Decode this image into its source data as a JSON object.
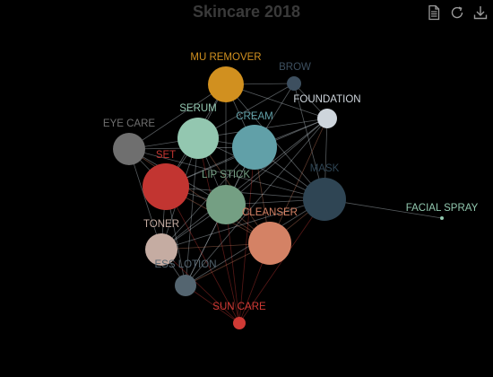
{
  "title": "Skincare 2018",
  "toolbar": {
    "icons": [
      "document-icon",
      "refresh-icon",
      "download-icon"
    ]
  },
  "colors": {
    "background": "#000000",
    "title": "#3a3a3a",
    "icon": "#9a9a9a"
  },
  "chart_data": {
    "type": "network",
    "title": "Skincare 2018",
    "nodes": [
      {
        "id": "MU REMOVER",
        "label": "MU REMOVER",
        "color": "#d1901f",
        "size": 20
      },
      {
        "id": "BROW",
        "label": "BROW",
        "color": "#3d4f5f",
        "size": 8
      },
      {
        "id": "FOUNDATION",
        "label": "FOUNDATION",
        "color": "#ced5dc",
        "size": 11
      },
      {
        "id": "EYE CARE",
        "label": "EYE CARE",
        "color": "#6f6f6f",
        "size": 18
      },
      {
        "id": "SERUM",
        "label": "SERUM",
        "color": "#93c7b0",
        "size": 23
      },
      {
        "id": "CREAM",
        "label": "CREAM",
        "color": "#61a0a8",
        "size": 25
      },
      {
        "id": "SET",
        "label": "SET",
        "color": "#c23531",
        "size": 26
      },
      {
        "id": "LIP STICK",
        "label": "LIP STICK",
        "color": "#749f83",
        "size": 22
      },
      {
        "id": "MASK",
        "label": "MASK",
        "color": "#2f4554",
        "size": 24
      },
      {
        "id": "FACIAL SPRAY",
        "label": "FACIAL SPRAY",
        "color": "#91c7ae",
        "size": 2
      },
      {
        "id": "TONER",
        "label": "TONER",
        "color": "#c5aca2",
        "size": 18
      },
      {
        "id": "CLEANSER",
        "label": "CLEANSER",
        "color": "#d48265",
        "size": 24
      },
      {
        "id": "ESS LOTION",
        "label": "ESS LOTION",
        "color": "#546570",
        "size": 12
      },
      {
        "id": "SUN CARE",
        "label": "SUN CARE",
        "color": "#d03a35",
        "size": 7
      }
    ],
    "edges": [
      [
        "MU REMOVER",
        "BROW"
      ],
      [
        "MU REMOVER",
        "FOUNDATION"
      ],
      [
        "MU REMOVER",
        "SERUM"
      ],
      [
        "MU REMOVER",
        "CREAM"
      ],
      [
        "MU REMOVER",
        "SET"
      ],
      [
        "MU REMOVER",
        "LIP STICK"
      ],
      [
        "MU REMOVER",
        "MASK"
      ],
      [
        "MU REMOVER",
        "EYE CARE"
      ],
      [
        "BROW",
        "FOUNDATION"
      ],
      [
        "BROW",
        "CREAM"
      ],
      [
        "BROW",
        "SERUM"
      ],
      [
        "BROW",
        "MASK"
      ],
      [
        "FOUNDATION",
        "CREAM"
      ],
      [
        "FOUNDATION",
        "SERUM"
      ],
      [
        "FOUNDATION",
        "MASK"
      ],
      [
        "FOUNDATION",
        "LIP STICK"
      ],
      [
        "FOUNDATION",
        "SET"
      ],
      [
        "FOUNDATION",
        "CLEANSER"
      ],
      [
        "FOUNDATION",
        "TONER"
      ],
      [
        "FOUNDATION",
        "ESS LOTION"
      ],
      [
        "EYE CARE",
        "SERUM"
      ],
      [
        "EYE CARE",
        "SET"
      ],
      [
        "EYE CARE",
        "CREAM"
      ],
      [
        "EYE CARE",
        "LIP STICK"
      ],
      [
        "EYE CARE",
        "TONER"
      ],
      [
        "EYE CARE",
        "MASK"
      ],
      [
        "EYE CARE",
        "CLEANSER"
      ],
      [
        "SERUM",
        "CREAM"
      ],
      [
        "SERUM",
        "SET"
      ],
      [
        "SERUM",
        "LIP STICK"
      ],
      [
        "SERUM",
        "MASK"
      ],
      [
        "SERUM",
        "TONER"
      ],
      [
        "SERUM",
        "CLEANSER"
      ],
      [
        "SERUM",
        "ESS LOTION"
      ],
      [
        "SERUM",
        "SUN CARE"
      ],
      [
        "CREAM",
        "SET"
      ],
      [
        "CREAM",
        "LIP STICK"
      ],
      [
        "CREAM",
        "MASK"
      ],
      [
        "CREAM",
        "TONER"
      ],
      [
        "CREAM",
        "CLEANSER"
      ],
      [
        "CREAM",
        "ESS LOTION"
      ],
      [
        "CREAM",
        "SUN CARE"
      ],
      [
        "SET",
        "LIP STICK"
      ],
      [
        "SET",
        "MASK"
      ],
      [
        "SET",
        "TONER"
      ],
      [
        "SET",
        "CLEANSER"
      ],
      [
        "SET",
        "ESS LOTION"
      ],
      [
        "SET",
        "SUN CARE"
      ],
      [
        "LIP STICK",
        "MASK"
      ],
      [
        "LIP STICK",
        "TONER"
      ],
      [
        "LIP STICK",
        "CLEANSER"
      ],
      [
        "LIP STICK",
        "ESS LOTION"
      ],
      [
        "LIP STICK",
        "SUN CARE"
      ],
      [
        "MASK",
        "FACIAL SPRAY"
      ],
      [
        "MASK",
        "TONER"
      ],
      [
        "MASK",
        "CLEANSER"
      ],
      [
        "MASK",
        "ESS LOTION"
      ],
      [
        "MASK",
        "SUN CARE"
      ],
      [
        "TONER",
        "CLEANSER"
      ],
      [
        "TONER",
        "ESS LOTION"
      ],
      [
        "TONER",
        "SUN CARE"
      ],
      [
        "CLEANSER",
        "ESS LOTION"
      ],
      [
        "CLEANSER",
        "SUN CARE"
      ],
      [
        "ESS LOTION",
        "SUN CARE"
      ]
    ]
  }
}
